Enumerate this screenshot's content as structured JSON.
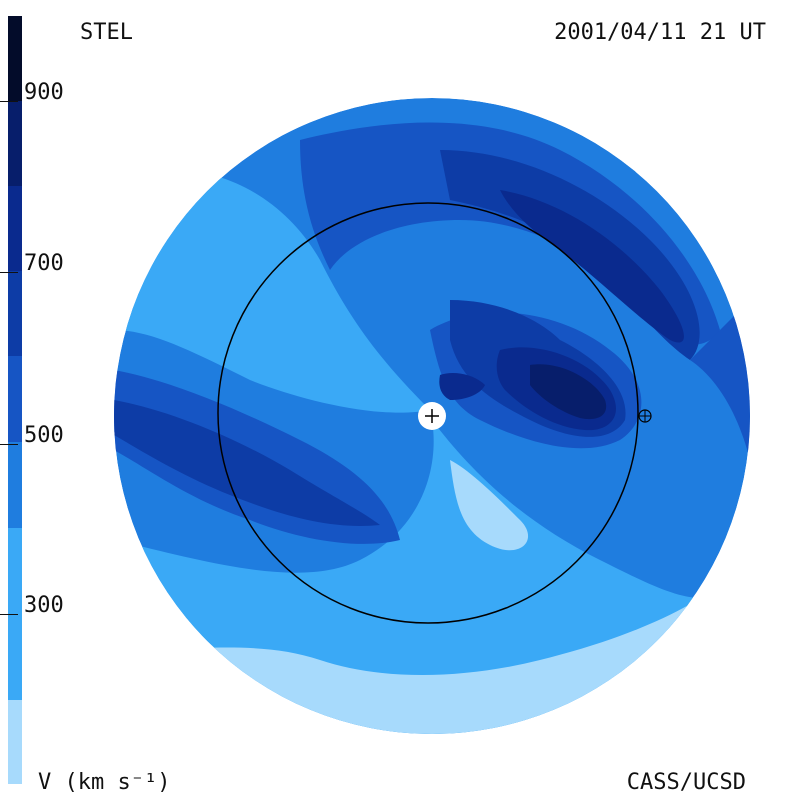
{
  "header": {
    "title_left": "STEL",
    "datetime": "2001/04/11 21 UT"
  },
  "footer": {
    "units": "V (km s⁻¹)",
    "credit": "CASS/UCSD"
  },
  "colorbar": {
    "tick_labels": [
      "900",
      "700",
      "500",
      "300"
    ],
    "colors": [
      "#a7dafc",
      "#3aa9f6",
      "#1f7ddf",
      "#1655c4",
      "#0d3ca6",
      "#0a2a8e",
      "#071e6b",
      "#05164d",
      "#030c2a"
    ]
  },
  "map": {
    "colors": {
      "level1": "#a7dafc",
      "level2": "#3aa9f6",
      "level3": "#1f7ddf",
      "level4": "#1655c4",
      "level5": "#0d3ca6",
      "level6": "#0a2a8e",
      "level7": "#071e6b",
      "orbit": "#000000",
      "sun": "#ffffff"
    },
    "markers": [
      "sun-marker",
      "earth-marker"
    ]
  }
}
